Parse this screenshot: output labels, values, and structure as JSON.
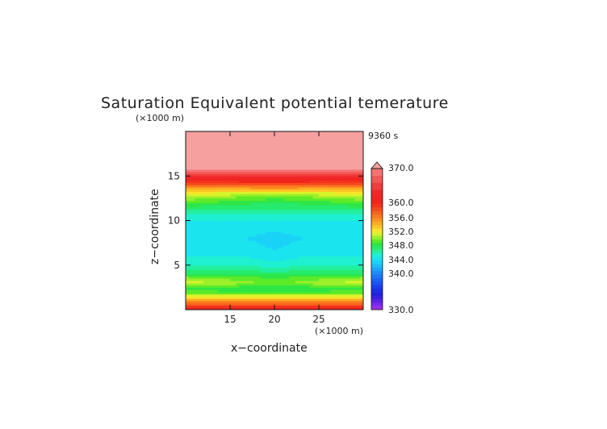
{
  "chart_data": {
    "type": "heatmap",
    "title": "Saturation Equivalent potential temerature",
    "time_label": "9360 s",
    "xlabel": "x−coordinate",
    "ylabel": "z−coordinate",
    "x_unit": "(×1000 m)",
    "y_unit": "(×1000 m)",
    "xlim": [
      10,
      30
    ],
    "ylim": [
      0,
      20
    ],
    "x_ticks": [
      "15",
      "20",
      "25"
    ],
    "y_ticks": [
      "5",
      "10",
      "15"
    ],
    "x_tick_values": [
      15,
      20,
      25
    ],
    "y_tick_values": [
      5,
      10,
      15
    ],
    "grid": false,
    "legend": "right (colorbar)",
    "colorbar": {
      "min": 330,
      "max": 370,
      "labels": [
        "370.0",
        "360.0",
        "356.0",
        "352.0",
        "348.0",
        "344.0",
        "340.0",
        "330.0"
      ],
      "label_values": [
        370,
        360,
        356,
        352,
        348,
        344,
        340,
        330
      ],
      "levels": [
        {
          "lo": 330,
          "hi": 331,
          "color": "#9a2ee6"
        },
        {
          "lo": 331,
          "hi": 332,
          "color": "#7a2aea"
        },
        {
          "lo": 332,
          "hi": 333,
          "color": "#5a22e8"
        },
        {
          "lo": 333,
          "hi": 334,
          "color": "#3a20e6"
        },
        {
          "lo": 334,
          "hi": 335,
          "color": "#2020e0"
        },
        {
          "lo": 335,
          "hi": 336,
          "color": "#1a2ee8"
        },
        {
          "lo": 336,
          "hi": 337,
          "color": "#1a3ef0"
        },
        {
          "lo": 337,
          "hi": 338,
          "color": "#1a50f4"
        },
        {
          "lo": 338,
          "hi": 339,
          "color": "#1a62f6"
        },
        {
          "lo": 339,
          "hi": 340,
          "color": "#1a78f8"
        },
        {
          "lo": 340,
          "hi": 341,
          "color": "#1a8cfa"
        },
        {
          "lo": 341,
          "hi": 342,
          "color": "#1aa6fa"
        },
        {
          "lo": 342,
          "hi": 343,
          "color": "#1abefa"
        },
        {
          "lo": 343,
          "hi": 344,
          "color": "#1ad2f8"
        },
        {
          "lo": 344,
          "hi": 345,
          "color": "#1ae4ee"
        },
        {
          "lo": 345,
          "hi": 346,
          "color": "#1ef0d2"
        },
        {
          "lo": 346,
          "hi": 347,
          "color": "#22f0a0"
        },
        {
          "lo": 347,
          "hi": 348,
          "color": "#26ea6e"
        },
        {
          "lo": 348,
          "hi": 349,
          "color": "#2ee646"
        },
        {
          "lo": 349,
          "hi": 350,
          "color": "#5cea2a"
        },
        {
          "lo": 350,
          "hi": 351,
          "color": "#9af02a"
        },
        {
          "lo": 351,
          "hi": 352,
          "color": "#d8f42a"
        },
        {
          "lo": 352,
          "hi": 353,
          "color": "#fae42a"
        },
        {
          "lo": 353,
          "hi": 354,
          "color": "#fcc826"
        },
        {
          "lo": 354,
          "hi": 355,
          "color": "#fcac22"
        },
        {
          "lo": 355,
          "hi": 356,
          "color": "#fc921e"
        },
        {
          "lo": 356,
          "hi": 357,
          "color": "#fa7a1e"
        },
        {
          "lo": 357,
          "hi": 358,
          "color": "#f8621e"
        },
        {
          "lo": 358,
          "hi": 359,
          "color": "#f64a1e"
        },
        {
          "lo": 359,
          "hi": 360,
          "color": "#f4321e"
        },
        {
          "lo": 360,
          "hi": 362,
          "color": "#f2241e"
        },
        {
          "lo": 362,
          "hi": 364,
          "color": "#f02828"
        },
        {
          "lo": 364,
          "hi": 366,
          "color": "#f03c3c"
        },
        {
          "lo": 366,
          "hi": 368,
          "color": "#f25858"
        },
        {
          "lo": 368,
          "hi": 370,
          "color": "#f47474"
        },
        {
          "lo": 370,
          "hi": 380,
          "color": "#f6a0a0"
        }
      ]
    },
    "profile": [
      {
        "z": 0.0,
        "value": 362
      },
      {
        "z": 0.6,
        "value": 358
      },
      {
        "z": 1.2,
        "value": 354
      },
      {
        "z": 1.8,
        "value": 350
      },
      {
        "z": 2.4,
        "value": 348
      },
      {
        "z": 3.0,
        "value": 350
      },
      {
        "z": 3.6,
        "value": 349
      },
      {
        "z": 4.4,
        "value": 347
      },
      {
        "z": 5.2,
        "value": 345.5
      },
      {
        "z": 6.0,
        "value": 345
      },
      {
        "z": 7.0,
        "value": 344.5
      },
      {
        "z": 8.0,
        "value": 344
      },
      {
        "z": 9.0,
        "value": 344.5
      },
      {
        "z": 10.0,
        "value": 345
      },
      {
        "z": 11.0,
        "value": 346.5
      },
      {
        "z": 12.0,
        "value": 348
      },
      {
        "z": 12.6,
        "value": 349.5
      },
      {
        "z": 13.2,
        "value": 352
      },
      {
        "z": 13.8,
        "value": 356
      },
      {
        "z": 14.4,
        "value": 360
      },
      {
        "z": 15.0,
        "value": 364
      },
      {
        "z": 15.5,
        "value": 368
      },
      {
        "z": 16.0,
        "value": 371
      },
      {
        "z": 20.0,
        "value": 372
      }
    ]
  }
}
